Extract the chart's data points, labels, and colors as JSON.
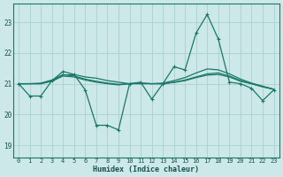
{
  "xlabel": "Humidex (Indice chaleur)",
  "bg_color": "#cce8e8",
  "grid_color": "#aad0d0",
  "line_color": "#1a7868",
  "text_color": "#1a5050",
  "xlim": [
    -0.5,
    23.5
  ],
  "ylim": [
    18.6,
    23.6
  ],
  "yticks": [
    19,
    20,
    21,
    22,
    23
  ],
  "xticks": [
    0,
    1,
    2,
    3,
    4,
    5,
    6,
    7,
    8,
    9,
    10,
    11,
    12,
    13,
    14,
    15,
    16,
    17,
    18,
    19,
    20,
    21,
    22,
    23
  ],
  "series1": [
    21.0,
    20.6,
    20.6,
    21.1,
    21.4,
    21.3,
    20.8,
    19.65,
    19.65,
    19.5,
    21.0,
    21.05,
    20.5,
    21.0,
    21.55,
    21.45,
    22.65,
    23.25,
    22.45,
    21.05,
    21.0,
    20.85,
    20.45,
    20.8
  ],
  "series2": [
    21.0,
    21.0,
    21.02,
    21.12,
    21.28,
    21.3,
    21.22,
    21.18,
    21.1,
    21.05,
    21.0,
    21.0,
    21.0,
    21.02,
    21.1,
    21.2,
    21.35,
    21.48,
    21.45,
    21.32,
    21.15,
    21.02,
    20.92,
    20.82
  ],
  "series3": [
    21.0,
    21.0,
    21.0,
    21.1,
    21.3,
    21.25,
    21.15,
    21.08,
    21.02,
    20.98,
    21.0,
    21.02,
    21.0,
    21.0,
    21.05,
    21.12,
    21.22,
    21.32,
    21.35,
    21.25,
    21.1,
    21.0,
    20.9,
    20.82
  ],
  "series4": [
    21.0,
    21.0,
    21.0,
    21.08,
    21.25,
    21.22,
    21.12,
    21.05,
    21.0,
    20.96,
    21.0,
    21.02,
    21.0,
    21.0,
    21.04,
    21.1,
    21.2,
    21.28,
    21.3,
    21.22,
    21.08,
    21.0,
    20.9,
    20.82
  ]
}
